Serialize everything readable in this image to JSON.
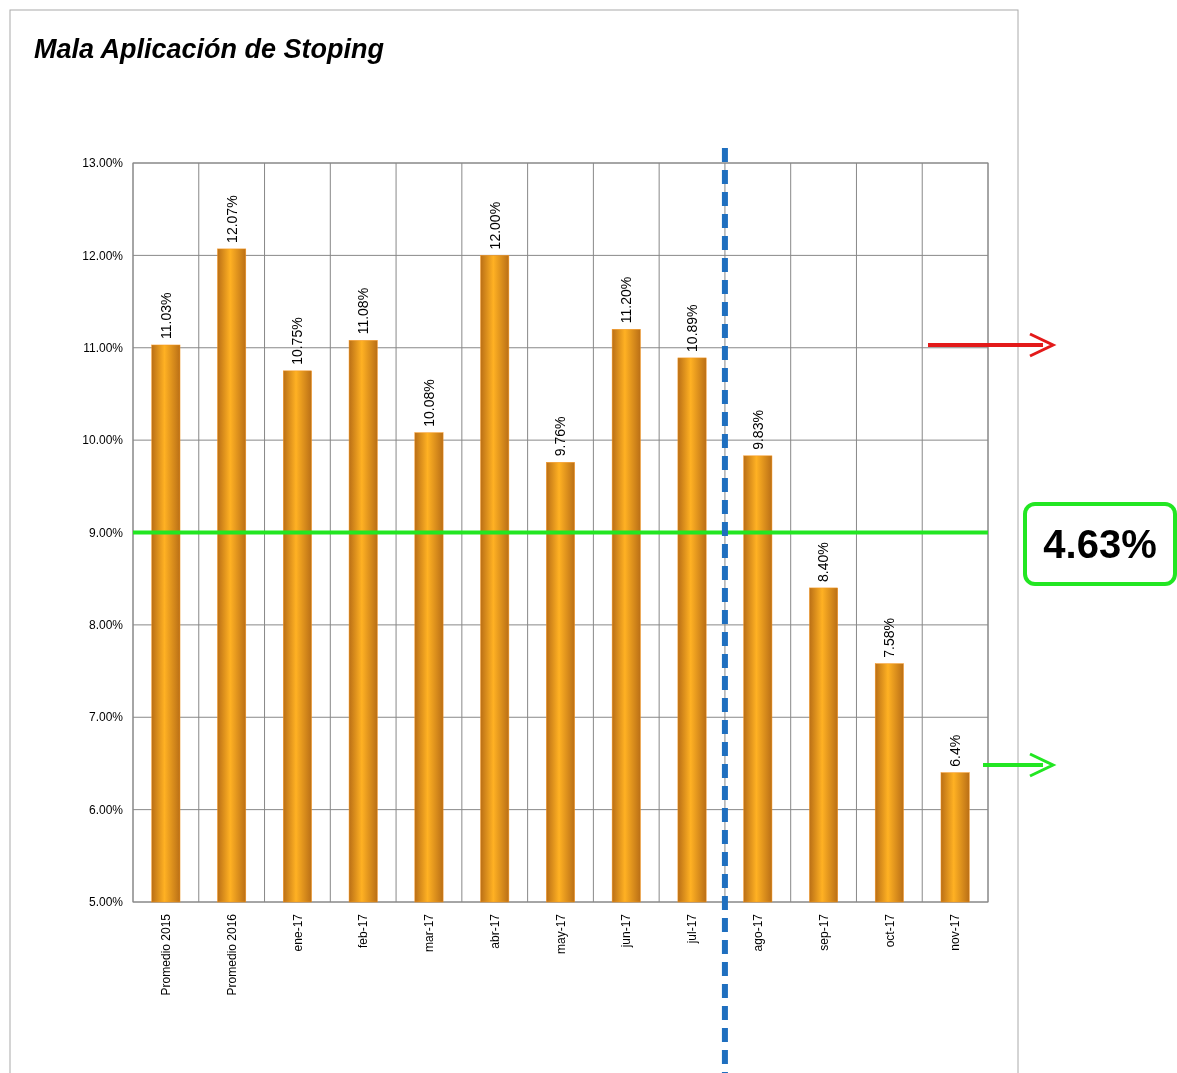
{
  "chart_data": {
    "type": "bar",
    "title": "Mala Aplicación de Stoping",
    "categories": [
      "Promedio 2015",
      "Promedio 2016",
      "ene-17",
      "feb-17",
      "mar-17",
      "abr-17",
      "may-17",
      "jun-17",
      "jul-17",
      "ago-17",
      "sep-17",
      "oct-17",
      "nov-17"
    ],
    "values": [
      11.03,
      12.07,
      10.75,
      11.08,
      10.08,
      12.0,
      9.76,
      11.2,
      10.89,
      9.83,
      8.4,
      7.58,
      6.4
    ],
    "value_labels": [
      "11.03%",
      "12.07%",
      "10.75%",
      "11.08%",
      "10.08%",
      "12.00%",
      "9.76%",
      "11.20%",
      "10.89%",
      "9.83%",
      "8.40%",
      "7.58%",
      "6.4%"
    ],
    "color": "#f7941d",
    "ylim": [
      5,
      13
    ],
    "yticks": [
      {
        "value": 5,
        "label": "5.00%"
      },
      {
        "value": 6,
        "label": "6.00%"
      },
      {
        "value": 7,
        "label": "7.00%"
      },
      {
        "value": 8,
        "label": "8.00%"
      },
      {
        "value": 9,
        "label": "9.00%"
      },
      {
        "value": 10,
        "label": "10.00%"
      },
      {
        "value": 11,
        "label": "11.00%"
      },
      {
        "value": 12,
        "label": "12.00%"
      },
      {
        "value": 13,
        "label": "13.00%"
      }
    ],
    "grid": true,
    "ref_lines": [
      {
        "axis": "y",
        "value": 9,
        "color": "#22e622",
        "line_style": "solid"
      },
      {
        "axis": "x",
        "value": "ago-17",
        "color": "#1f6fbf",
        "line_style": "dashed"
      }
    ],
    "annotations": [
      "4.63%"
    ]
  }
}
